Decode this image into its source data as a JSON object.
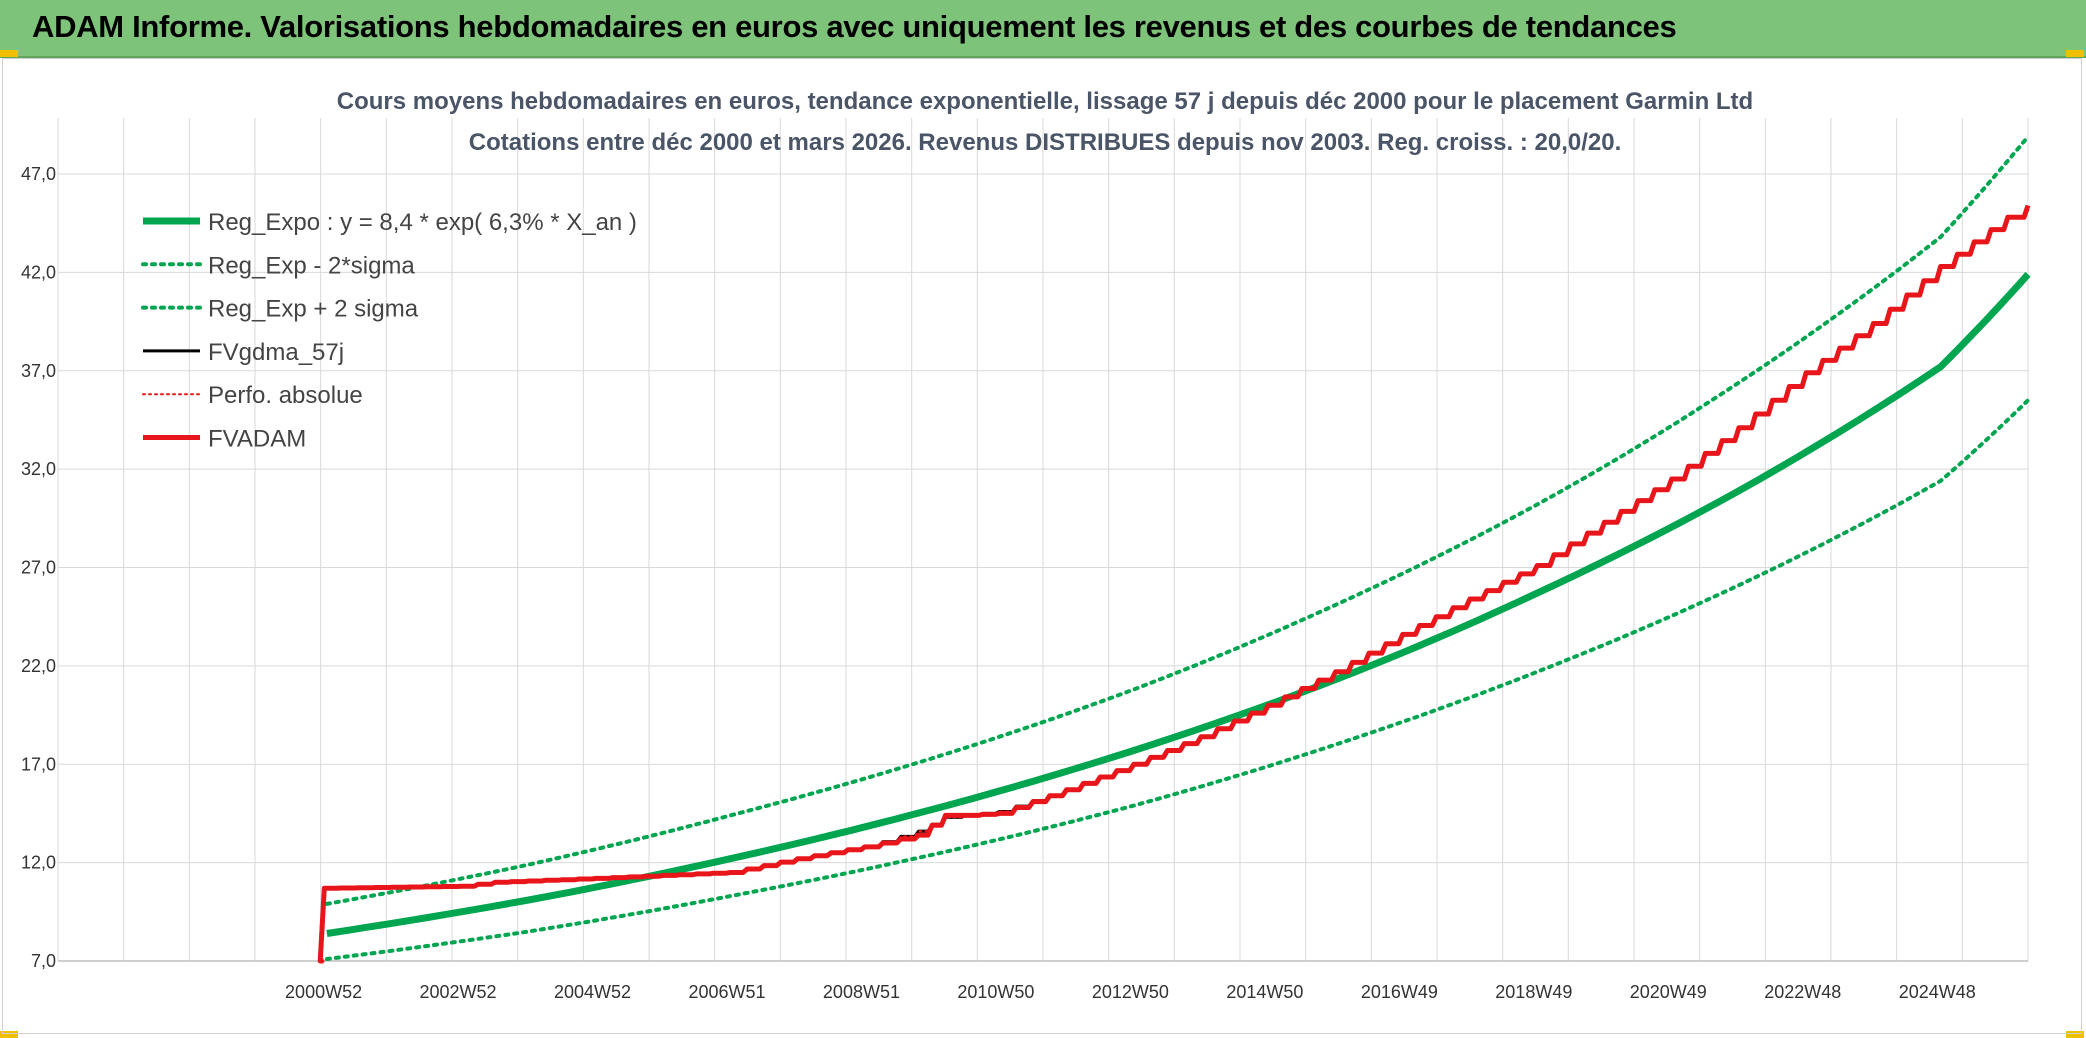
{
  "header": {
    "title": "ADAM Informe. Valorisations hebdomadaires en euros avec uniquement les revenus et des courbes de tendances"
  },
  "chart_data": {
    "type": "line",
    "title_lines": [
      "Cours moyens hebdomadaires en euros, tendance exponentielle, lissage 57 j depuis déc 2000 pour le placement Garmin Ltd",
      "Cotations entre déc 2000 et mars 2026. Revenus DISTRIBUES depuis nov 2003. Reg. croiss. : 20,0/20."
    ],
    "xlabel": "",
    "ylabel": "",
    "ylim": [
      7.0,
      47.0
    ],
    "yticks": [
      "7,0",
      "12,0",
      "17,0",
      "22,0",
      "27,0",
      "32,0",
      "37,0",
      "42,0",
      "47,0"
    ],
    "xticks": [
      "2000W52",
      "2002W52",
      "2004W52",
      "2006W51",
      "2008W51",
      "2010W50",
      "2012W50",
      "2014W50",
      "2016W49",
      "2018W49",
      "2020W49",
      "2022W48",
      "2024W48"
    ],
    "xrange": [
      1997,
      2026.3
    ],
    "grid": true,
    "legend_position": "top-left",
    "colors": {
      "green": "#00a550",
      "red": "#e8161b",
      "black": "#000000",
      "grid": "#d9d9d9"
    },
    "series": [
      {
        "name": "Reg_Expo : y = 8,4 * exp( 6,3% *  X_an )",
        "style": "solid-thick-green",
        "x": [
          2001,
          2004,
          2007,
          2010,
          2013,
          2016,
          2019,
          2022,
          2025,
          2026.3
        ],
        "y": [
          8.4,
          10.1,
          12.2,
          14.7,
          17.7,
          21.3,
          25.7,
          30.9,
          37.2,
          41.9
        ]
      },
      {
        "name": "Reg_Exp - 2*sigma",
        "style": "dotted-green",
        "x": [
          2001,
          2004,
          2007,
          2010,
          2013,
          2016,
          2019,
          2022,
          2025,
          2026.3
        ],
        "y": [
          7.1,
          8.5,
          10.3,
          12.4,
          14.9,
          18.0,
          21.7,
          26.1,
          31.4,
          35.5
        ]
      },
      {
        "name": "Reg_Exp + 2 sigma",
        "style": "dotted-green",
        "x": [
          2001,
          2004,
          2007,
          2010,
          2013,
          2016,
          2019,
          2022,
          2025,
          2026.3
        ],
        "y": [
          9.9,
          11.9,
          14.4,
          17.3,
          20.8,
          25.1,
          30.2,
          36.4,
          43.8,
          48.9
        ]
      },
      {
        "name": "FVgdma_57j",
        "style": "solid-black",
        "x": [
          2000.95,
          2000.96,
          2003.0,
          2003.5,
          2005.0,
          2007.0,
          2008.0,
          2009.0,
          2009.8,
          2010.2,
          2010.5,
          2011.0,
          2012.0,
          2013.0,
          2014.0,
          2015.0,
          2016.0,
          2017.0,
          2018.0,
          2019.0,
          2020.0,
          2021.0,
          2022.0,
          2023.0,
          2024.0,
          2025.0,
          2026.0,
          2026.3
        ],
        "y": [
          7.0,
          10.7,
          10.8,
          11.0,
          11.2,
          11.5,
          12.2,
          12.8,
          13.6,
          14.3,
          14.4,
          14.6,
          15.7,
          17.0,
          18.4,
          20.0,
          21.7,
          23.6,
          25.4,
          27.1,
          29.3,
          31.5,
          34.1,
          36.9,
          39.4,
          42.3,
          44.8,
          45.2
        ]
      },
      {
        "name": "Perfo. absolue",
        "style": "dotted-red",
        "x": [
          2000.95,
          2000.96,
          2003.0,
          2003.5,
          2005.0,
          2007.0,
          2008.0,
          2009.0,
          2009.8,
          2010.2,
          2010.5,
          2011.0,
          2012.0,
          2013.0,
          2014.0,
          2015.0,
          2016.0,
          2017.0,
          2018.0,
          2019.0,
          2020.0,
          2021.0,
          2022.0,
          2023.0,
          2024.0,
          2025.0,
          2026.0,
          2026.3
        ],
        "y": [
          7.0,
          10.7,
          10.8,
          11.0,
          11.2,
          11.5,
          12.2,
          12.8,
          13.6,
          14.3,
          14.4,
          14.6,
          15.7,
          17.0,
          18.4,
          20.0,
          21.7,
          23.6,
          25.4,
          27.1,
          29.3,
          31.5,
          34.1,
          36.9,
          39.4,
          42.3,
          44.8,
          45.2
        ]
      },
      {
        "name": "FVADAM",
        "style": "solid-thick-red",
        "x": [
          2000.95,
          2000.96,
          2003.0,
          2003.5,
          2005.0,
          2007.0,
          2008.0,
          2009.0,
          2009.8,
          2010.2,
          2010.5,
          2011.0,
          2012.0,
          2013.0,
          2014.0,
          2015.0,
          2016.0,
          2017.0,
          2018.0,
          2019.0,
          2020.0,
          2021.0,
          2022.0,
          2023.0,
          2024.0,
          2025.0,
          2026.0,
          2026.3
        ],
        "y": [
          7.0,
          10.7,
          10.8,
          11.0,
          11.2,
          11.5,
          12.2,
          12.8,
          13.4,
          14.4,
          14.4,
          14.5,
          15.7,
          17.0,
          18.4,
          20.0,
          21.7,
          23.6,
          25.4,
          27.1,
          29.3,
          31.5,
          34.1,
          36.9,
          39.4,
          42.3,
          44.8,
          45.4
        ]
      }
    ]
  }
}
